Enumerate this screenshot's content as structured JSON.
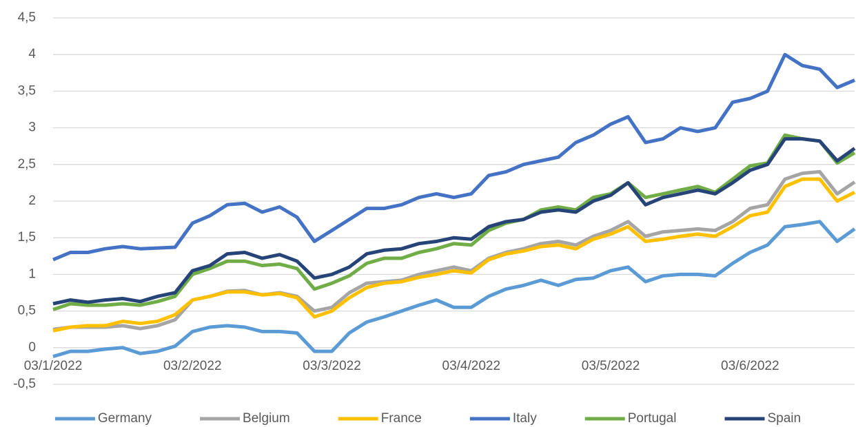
{
  "chart_data": {
    "type": "line",
    "categories": [
      "03/1/2022",
      null,
      null,
      null,
      null,
      null,
      null,
      null,
      "03/2/2022",
      null,
      null,
      null,
      null,
      null,
      null,
      null,
      "03/3/2022",
      null,
      null,
      null,
      null,
      null,
      null,
      null,
      "03/4/2022",
      null,
      null,
      null,
      null,
      null,
      null,
      null,
      "03/5/2022",
      null,
      null,
      null,
      null,
      null,
      null,
      null,
      "03/6/2022",
      null,
      null,
      null,
      null,
      null,
      null
    ],
    "series": [
      {
        "name": "Germany",
        "color": "#5b9bd5",
        "values": [
          -0.12,
          -0.05,
          -0.05,
          -0.02,
          0,
          -0.08,
          -0.05,
          0.02,
          0.22,
          0.28,
          0.3,
          0.28,
          0.22,
          0.22,
          0.2,
          -0.05,
          -0.05,
          0.2,
          0.35,
          0.42,
          0.5,
          0.58,
          0.65,
          0.55,
          0.55,
          0.7,
          0.8,
          0.85,
          0.92,
          0.85,
          0.93,
          0.95,
          1.05,
          1.1,
          0.9,
          0.98,
          1.0,
          1.0,
          0.98,
          1.15,
          1.3,
          1.4,
          1.65,
          1.68,
          1.72,
          1.45,
          1.62
        ]
      },
      {
        "name": "Belgium",
        "color": "#a5a5a5",
        "values": [
          0.25,
          0.28,
          0.28,
          0.28,
          0.3,
          0.26,
          0.3,
          0.38,
          0.65,
          0.7,
          0.77,
          0.78,
          0.72,
          0.75,
          0.7,
          0.5,
          0.55,
          0.75,
          0.88,
          0.9,
          0.92,
          1.0,
          1.05,
          1.1,
          1.05,
          1.22,
          1.3,
          1.35,
          1.42,
          1.45,
          1.4,
          1.52,
          1.6,
          1.72,
          1.52,
          1.58,
          1.6,
          1.62,
          1.6,
          1.72,
          1.9,
          1.95,
          2.3,
          2.38,
          2.4,
          2.1,
          2.26
        ]
      },
      {
        "name": "France",
        "color": "#ffc000",
        "values": [
          0.23,
          0.28,
          0.3,
          0.3,
          0.36,
          0.33,
          0.36,
          0.45,
          0.65,
          0.7,
          0.76,
          0.76,
          0.72,
          0.74,
          0.68,
          0.42,
          0.5,
          0.68,
          0.82,
          0.88,
          0.9,
          0.96,
          1.0,
          1.05,
          1.02,
          1.2,
          1.28,
          1.32,
          1.38,
          1.4,
          1.35,
          1.48,
          1.55,
          1.65,
          1.45,
          1.48,
          1.52,
          1.55,
          1.52,
          1.65,
          1.8,
          1.85,
          2.2,
          2.3,
          2.3,
          2.0,
          2.12
        ]
      },
      {
        "name": "Italy",
        "color": "#4472c4",
        "values": [
          1.2,
          1.3,
          1.3,
          1.35,
          1.38,
          1.35,
          1.36,
          1.37,
          1.7,
          1.8,
          1.95,
          1.97,
          1.85,
          1.92,
          1.78,
          1.45,
          1.6,
          1.75,
          1.9,
          1.9,
          1.95,
          2.05,
          2.1,
          2.05,
          2.1,
          2.35,
          2.4,
          2.5,
          2.55,
          2.6,
          2.8,
          2.9,
          3.05,
          3.15,
          2.8,
          2.85,
          3.0,
          2.95,
          3.0,
          3.35,
          3.4,
          3.5,
          4.0,
          3.85,
          3.8,
          3.55,
          3.65
        ]
      },
      {
        "name": "Portugal",
        "color": "#70ad47",
        "values": [
          0.52,
          0.6,
          0.58,
          0.58,
          0.6,
          0.58,
          0.63,
          0.7,
          1.0,
          1.08,
          1.18,
          1.18,
          1.12,
          1.14,
          1.08,
          0.8,
          0.88,
          0.98,
          1.15,
          1.22,
          1.22,
          1.3,
          1.35,
          1.42,
          1.4,
          1.6,
          1.7,
          1.75,
          1.88,
          1.92,
          1.88,
          2.05,
          2.1,
          2.25,
          2.05,
          2.1,
          2.15,
          2.2,
          2.12,
          2.3,
          2.48,
          2.52,
          2.9,
          2.85,
          2.82,
          2.52,
          2.66
        ]
      },
      {
        "name": "Spain",
        "color": "#264478",
        "values": [
          0.6,
          0.65,
          0.62,
          0.65,
          0.67,
          0.63,
          0.7,
          0.75,
          1.05,
          1.12,
          1.28,
          1.3,
          1.22,
          1.27,
          1.18,
          0.95,
          1.0,
          1.1,
          1.28,
          1.33,
          1.35,
          1.42,
          1.45,
          1.5,
          1.48,
          1.65,
          1.72,
          1.75,
          1.85,
          1.88,
          1.85,
          2.0,
          2.08,
          2.25,
          1.95,
          2.05,
          2.1,
          2.15,
          2.1,
          2.25,
          2.42,
          2.5,
          2.85,
          2.85,
          2.82,
          2.55,
          2.72
        ]
      }
    ],
    "ylim": [
      -0.5,
      4.5
    ],
    "yticks": [
      {
        "value": -0.5,
        "label": "-0,5"
      },
      0,
      {
        "value": 0.5,
        "label": "0,5"
      },
      1,
      {
        "value": 1.5,
        "label": "1,5"
      },
      2,
      {
        "value": 2.5,
        "label": "2,5"
      },
      3,
      {
        "value": 3.5,
        "label": "3,5"
      },
      4,
      {
        "value": 4.5,
        "label": "4,5"
      }
    ],
    "grid": true,
    "legend": "bottom"
  }
}
